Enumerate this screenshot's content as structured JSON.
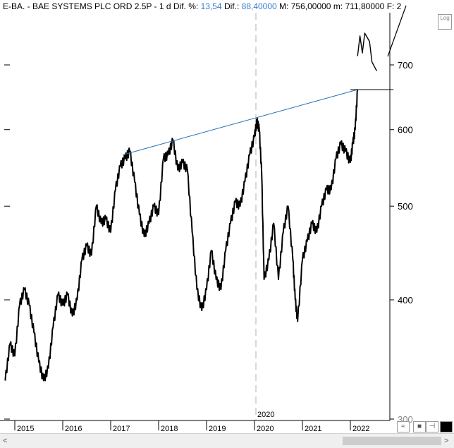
{
  "header": {
    "symbol": "E-BA.",
    "sep1": " - ",
    "name": "BAE SYSTEMS PLC ORD 2.5P",
    "sep2": " - ",
    "period": "1 d",
    "dif_pct_label": "Dif. %:",
    "dif_pct_value": "13,54",
    "dif_label": "Dif.:",
    "dif_value": "88,40000",
    "max_label": "M:",
    "max_value": "756,00000",
    "min_label": "m:",
    "min_value": "711,80000",
    "tail": "F: 2"
  },
  "log_button": "Log",
  "colors": {
    "price": "#000000",
    "trendline": "#1f6fb5",
    "axis": "#000000",
    "blue_text": "#3a7bd5"
  },
  "icons": [
    "log-toggle-icon",
    "zoom-icon",
    "save-icon",
    "pin-icon",
    "color-icon",
    "scroll-left-icon",
    "scroll-right-icon"
  ],
  "chart_data": {
    "type": "line",
    "scale": "log",
    "ylim": [
      300,
      800
    ],
    "y_ticks": [
      "700",
      "600",
      "500",
      "400",
      "300"
    ],
    "x_ticks": [
      "2015",
      "2016",
      "2017",
      "2018",
      "2019",
      "2020",
      "2021",
      "2022"
    ],
    "x_marker_label": "2020",
    "series": [
      {
        "x": [
          2014.8,
          2014.9,
          2015.0,
          2015.1,
          2015.2,
          2015.3,
          2015.4,
          2015.5,
          2015.6,
          2015.7,
          2015.8,
          2015.9,
          2016.0,
          2016.1,
          2016.2,
          2016.3,
          2016.4,
          2016.5,
          2016.6,
          2016.7,
          2016.8,
          2016.9,
          2017.0,
          2017.1,
          2017.2,
          2017.3,
          2017.4,
          2017.5,
          2017.6,
          2017.7,
          2017.8,
          2017.9,
          2018.0,
          2018.1,
          2018.2,
          2018.3,
          2018.4,
          2018.5,
          2018.6,
          2018.7,
          2018.8,
          2018.9,
          2019.0,
          2019.1,
          2019.2,
          2019.3,
          2019.4,
          2019.5,
          2019.6,
          2019.7,
          2019.8,
          2019.9,
          2020.0,
          2020.05,
          2020.1,
          2020.15,
          2020.2,
          2020.3,
          2020.4,
          2020.5,
          2020.6,
          2020.7,
          2020.8,
          2020.85,
          2020.9,
          2021.0,
          2021.1,
          2021.2,
          2021.3,
          2021.4,
          2021.5,
          2021.6,
          2021.7,
          2021.8,
          2021.9,
          2022.0,
          2022.05,
          2022.1,
          2022.15
        ],
        "y": [
          330,
          360,
          350,
          395,
          410,
          395,
          370,
          345,
          330,
          340,
          375,
          405,
          395,
          405,
          385,
          400,
          440,
          455,
          445,
          500,
          480,
          485,
          470,
          520,
          550,
          560,
          570,
          530,
          490,
          465,
          480,
          500,
          490,
          560,
          565,
          585,
          545,
          555,
          545,
          470,
          410,
          390,
          410,
          450,
          420,
          410,
          450,
          480,
          505,
          500,
          530,
          565,
          590,
          612,
          600,
          540,
          420,
          440,
          480,
          420,
          470,
          500,
          440,
          400,
          380,
          440,
          460,
          480,
          470,
          500,
          520,
          520,
          560,
          580,
          570,
          555,
          580,
          600,
          660
        ]
      },
      {
        "x": [
          2022.15,
          2022.2,
          2022.25,
          2022.3,
          2022.4,
          2022.45,
          2022.55
        ],
        "y": [
          715,
          750,
          720,
          755,
          740,
          705,
          690
        ]
      }
    ],
    "annotations": [
      {
        "type": "trendline",
        "x": [
          2017.25,
          2022.15
        ],
        "y": [
          565,
          660
        ]
      },
      {
        "type": "hline",
        "x": [
          2022.0,
          2022.9
        ],
        "y": [
          660,
          660
        ]
      }
    ]
  }
}
